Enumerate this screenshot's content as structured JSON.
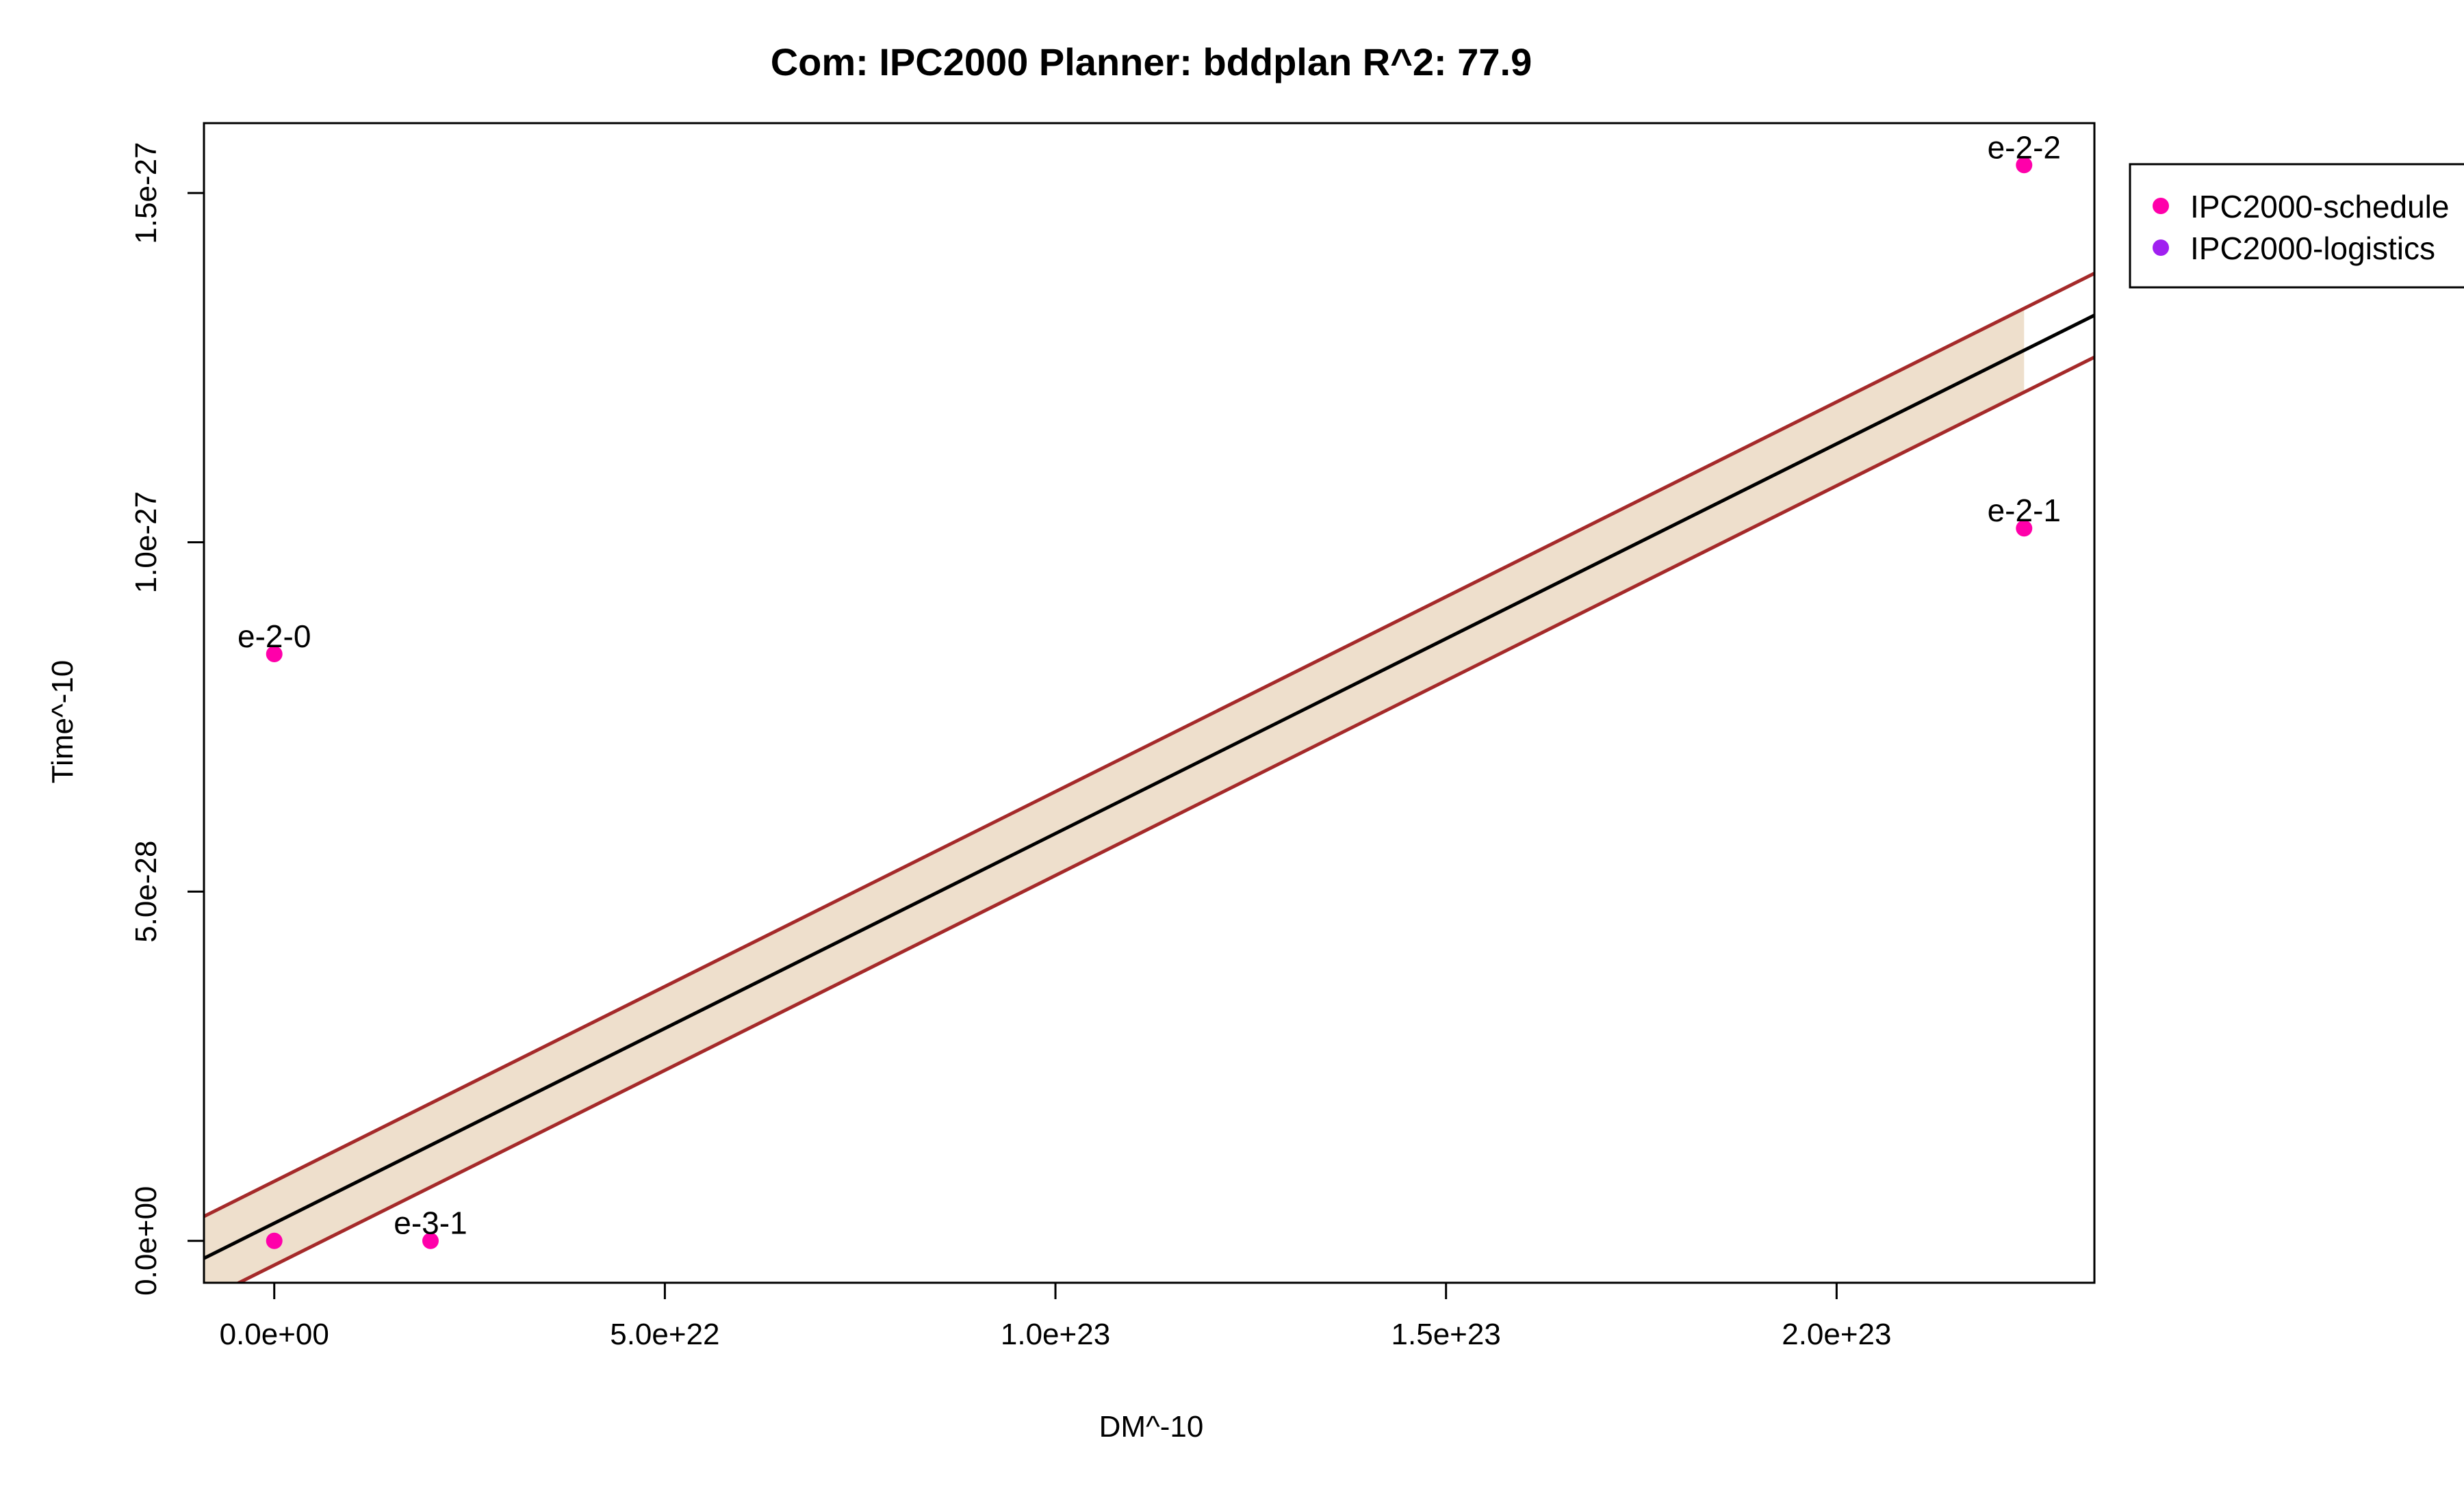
{
  "chart_data": {
    "type": "scatter",
    "title": "Com: IPC2000 Planner: bddplan R^2: 77.9",
    "xlabel": "DM^-10",
    "ylabel": "Time^-10",
    "xlim": [
      -9e+21,
      2.33e+23
    ],
    "ylim": [
      -6e-29,
      1.6e-27
    ],
    "x_ticks": [
      {
        "value": 0,
        "label": "0.0e+00"
      },
      {
        "value": 5e+22,
        "label": "5.0e+22"
      },
      {
        "value": 1e+23,
        "label": "1.0e+23"
      },
      {
        "value": 1.5e+23,
        "label": "1.5e+23"
      },
      {
        "value": 2e+23,
        "label": "2.0e+23"
      }
    ],
    "y_ticks": [
      {
        "value": 0,
        "label": "0.0e+00"
      },
      {
        "value": 5e-28,
        "label": "5.0e-28"
      },
      {
        "value": 1e-27,
        "label": "1.0e-27"
      },
      {
        "value": 1.5e-27,
        "label": "1.5e-27"
      }
    ],
    "series": [
      {
        "name": "IPC2000-schedule",
        "color": "#ff00aa",
        "points": [
          {
            "x": 0,
            "y": 8.4e-28,
            "label": "e-2-0"
          },
          {
            "x": 0,
            "y": 0,
            "label": ""
          },
          {
            "x": 2e+22,
            "y": 0,
            "label": "e-3-1"
          },
          {
            "x": 2.24e+23,
            "y": 1.54e-27,
            "label": "e-2-2"
          },
          {
            "x": 2.24e+23,
            "y": 1.02e-27,
            "label": "e-2-1"
          }
        ]
      },
      {
        "name": "IPC2000-logistics",
        "color": "#a020f0",
        "points": []
      }
    ],
    "fit_line": {
      "x0": -9e+21,
      "y0": -2.5e-29,
      "x1": 2.33e+23,
      "y1": 1.325e-27,
      "color": "#000000"
    },
    "band_upper": {
      "x0": -9e+21,
      "y0": 3.5e-29,
      "x1": 2.33e+23,
      "y1": 1.385e-27,
      "color": "#a52a2a"
    },
    "band_lower": {
      "x0": -9e+21,
      "y0": -8.5e-29,
      "x1": 2.33e+23,
      "y1": 1.265e-27,
      "color": "#a52a2a"
    },
    "band_fill_color": "#eedfcc",
    "band_fill_end_x": 2.24e+23,
    "legend_position": "top-right",
    "grid": false
  }
}
